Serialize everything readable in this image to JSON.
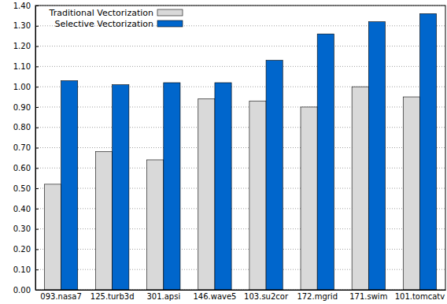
{
  "chart_data": {
    "type": "bar",
    "categories": [
      "093.nasa7",
      "125.turb3d",
      "301.apsi",
      "146.wave5",
      "103.su2cor",
      "172.mgrid",
      "171.swim",
      "101.tomcatv"
    ],
    "series": [
      {
        "name": "Traditional Vectorization",
        "color": "#d9d9d9",
        "values": [
          0.52,
          0.68,
          0.64,
          0.94,
          0.93,
          0.9,
          1.0,
          0.95
        ]
      },
      {
        "name": "Selective Vectorization",
        "color": "#0066cc",
        "values": [
          1.03,
          1.01,
          1.02,
          1.02,
          1.13,
          1.26,
          1.32,
          1.36
        ]
      }
    ],
    "ylim": [
      0,
      1.4
    ],
    "yticks": [
      {
        "value": 0,
        "label": "0.00"
      },
      {
        "value": 0.1,
        "label": "0.10"
      },
      {
        "value": 0.2,
        "label": "0.20"
      },
      {
        "value": 0.3,
        "label": "0.30"
      },
      {
        "value": 0.4,
        "label": "0.40"
      },
      {
        "value": 0.5,
        "label": "0.50"
      },
      {
        "value": 0.6,
        "label": "0.60"
      },
      {
        "value": 0.7,
        "label": "0.70"
      },
      {
        "value": 0.8,
        "label": "0.80"
      },
      {
        "value": 0.9,
        "label": "0.90"
      },
      {
        "value": 1.0,
        "label": "1.00"
      },
      {
        "value": 1.1,
        "label": "1.10"
      },
      {
        "value": 1.2,
        "label": "1.20"
      },
      {
        "value": 1.3,
        "label": "1.30"
      },
      {
        "value": 1.4,
        "label": "1.40"
      }
    ],
    "grid": true,
    "legend": "top-left"
  }
}
